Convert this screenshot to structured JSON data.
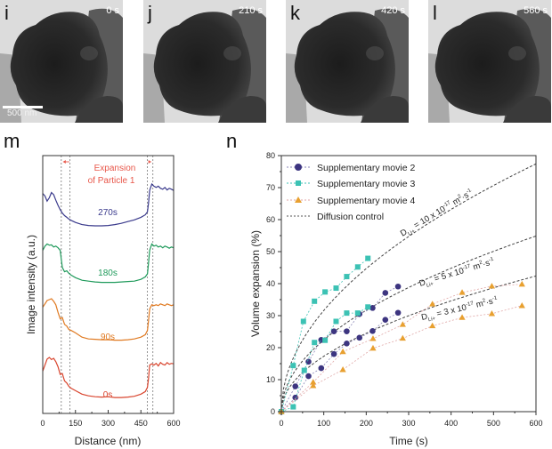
{
  "tem_panels": [
    {
      "letter": "i",
      "time": "0 s",
      "scalebar": "500 nm"
    },
    {
      "letter": "j",
      "time": "210 s"
    },
    {
      "letter": "k",
      "time": "420 s"
    },
    {
      "letter": "l",
      "time": "560 s"
    }
  ],
  "chart_data": [
    {
      "panel": "m",
      "type": "line",
      "xlabel": "Distance (nm)",
      "ylabel": "Image intensity (a.u.)",
      "xlim": [
        0,
        600
      ],
      "xticks": [
        "0",
        "150",
        "300",
        "450",
        "600"
      ],
      "annotation": [
        "Expansion",
        "of Particle 1"
      ],
      "annotation_color": "#e8574a",
      "dashed_lines_x": [
        85,
        125,
        480,
        505
      ],
      "series": [
        {
          "name": "270s",
          "color": "#3a3a8c",
          "offset": 3,
          "x": [
            0,
            10,
            20,
            30,
            40,
            50,
            60,
            70,
            80,
            90,
            100,
            110,
            120,
            130,
            150,
            180,
            210,
            240,
            270,
            300,
            330,
            360,
            390,
            420,
            450,
            470,
            480,
            485,
            490,
            500,
            510,
            520,
            530,
            540,
            550,
            560,
            570,
            580,
            590,
            600
          ],
          "y": [
            0.78,
            0.72,
            0.6,
            0.68,
            0.8,
            0.75,
            0.62,
            0.5,
            0.4,
            0.32,
            0.26,
            0.22,
            0.18,
            0.15,
            0.1,
            0.05,
            0.03,
            0.02,
            0.02,
            0.03,
            0.05,
            0.08,
            0.12,
            0.16,
            0.22,
            0.28,
            0.35,
            0.55,
            0.85,
            1.0,
            0.95,
            0.92,
            0.95,
            0.9,
            0.88,
            0.92,
            0.86,
            0.9,
            0.88,
            0.85
          ]
        },
        {
          "name": "180s",
          "color": "#1f9a5b",
          "offset": 2,
          "x": [
            0,
            10,
            20,
            30,
            40,
            50,
            60,
            70,
            80,
            90,
            100,
            110,
            120,
            130,
            150,
            180,
            210,
            240,
            270,
            300,
            330,
            360,
            390,
            420,
            450,
            470,
            480,
            485,
            490,
            500,
            510,
            520,
            530,
            540,
            550,
            560,
            570,
            580,
            590,
            600
          ],
          "y": [
            0.8,
            0.9,
            0.95,
            0.92,
            0.93,
            0.88,
            0.9,
            0.86,
            0.8,
            0.4,
            0.3,
            0.32,
            0.26,
            0.22,
            0.16,
            0.1,
            0.08,
            0.06,
            0.05,
            0.05,
            0.05,
            0.06,
            0.07,
            0.08,
            0.12,
            0.18,
            0.25,
            0.5,
            0.8,
            0.95,
            0.9,
            0.92,
            0.88,
            0.9,
            0.86,
            0.9,
            0.88,
            0.85,
            0.88,
            0.86
          ]
        },
        {
          "name": "90s",
          "color": "#e07a22",
          "offset": 1,
          "x": [
            0,
            10,
            20,
            30,
            40,
            50,
            60,
            70,
            80,
            90,
            100,
            110,
            120,
            130,
            150,
            180,
            210,
            240,
            270,
            300,
            330,
            360,
            390,
            420,
            450,
            470,
            480,
            485,
            490,
            500,
            510,
            520,
            530,
            540,
            550,
            560,
            570,
            580,
            590,
            600
          ],
          "y": [
            0.82,
            0.9,
            0.98,
            1.0,
            1.02,
            0.96,
            0.88,
            0.7,
            0.55,
            0.58,
            0.42,
            0.38,
            0.3,
            0.28,
            0.22,
            0.12,
            0.08,
            0.07,
            0.06,
            0.06,
            0.05,
            0.05,
            0.06,
            0.08,
            0.12,
            0.18,
            0.28,
            0.5,
            0.78,
            0.88,
            0.86,
            0.88,
            0.86,
            0.9,
            0.88,
            0.86,
            0.9,
            0.88,
            0.86,
            0.88
          ]
        },
        {
          "name": "0s",
          "color": "#d9452e",
          "offset": 0,
          "x": [
            0,
            10,
            20,
            30,
            40,
            50,
            60,
            70,
            80,
            90,
            100,
            110,
            120,
            130,
            150,
            180,
            210,
            240,
            270,
            300,
            330,
            360,
            390,
            420,
            450,
            470,
            480,
            485,
            490,
            500,
            510,
            520,
            530,
            540,
            550,
            560,
            570,
            580,
            590,
            600
          ],
          "y": [
            0.68,
            0.82,
            0.96,
            1.0,
            0.95,
            0.98,
            0.9,
            0.78,
            0.6,
            0.62,
            0.45,
            0.4,
            0.32,
            0.28,
            0.22,
            0.14,
            0.1,
            0.08,
            0.07,
            0.08,
            0.06,
            0.06,
            0.07,
            0.09,
            0.14,
            0.2,
            0.3,
            0.5,
            0.82,
            0.85,
            0.82,
            0.86,
            0.8,
            0.88,
            0.84,
            0.82,
            0.88,
            0.84,
            0.86,
            0.85
          ]
        }
      ]
    },
    {
      "panel": "n",
      "type": "scatter",
      "xlabel": "Time (s)",
      "ylabel": "Volume expansion (%)",
      "xlim": [
        0,
        600
      ],
      "ylim": [
        0,
        80
      ],
      "xticks": [
        0,
        100,
        200,
        300,
        400,
        500,
        600
      ],
      "yticks": [
        0,
        10,
        20,
        30,
        40,
        50,
        60,
        70,
        80
      ],
      "legend_position": "top-left",
      "legend": [
        {
          "label": "Supplementary movie 2",
          "marker": "circle",
          "color": "#3d3580"
        },
        {
          "label": "Supplementary movie 3",
          "marker": "square",
          "color": "#3cc2b4"
        },
        {
          "label": "Supplementary movie 4",
          "marker": "triangle",
          "color": "#e8a030"
        },
        {
          "label": "Diffusion control",
          "marker": "dashed-line",
          "color": "#555555"
        }
      ],
      "series": [
        {
          "name": "Supplementary movie 2",
          "marker": "circle",
          "color": "#3d3580",
          "x": [
            0,
            33,
            64,
            94,
            124,
            154,
            184,
            215,
            245,
            275
          ],
          "y": [
            0,
            7.9,
            15.6,
            22.4,
            25.1,
            25.1,
            30.5,
            32.4,
            37.1,
            39.1
          ]
        },
        {
          "name": "Supplementary movie 2 (b)",
          "marker": "circle",
          "color": "#3d3580",
          "x": [
            0,
            33,
            64,
            94,
            124,
            154,
            184,
            215,
            245,
            275
          ],
          "y": [
            0,
            4.4,
            11.1,
            13.6,
            18.0,
            21.3,
            23.1,
            25.2,
            28.7,
            30.9
          ]
        },
        {
          "name": "Supplementary movie 3",
          "marker": "square",
          "color": "#3cc2b4",
          "x": [
            0,
            28,
            52,
            78,
            103,
            129,
            154,
            180,
            204
          ],
          "y": [
            0,
            14.4,
            28.2,
            34.5,
            37.4,
            38.6,
            42.2,
            45.2,
            47.9
          ]
        },
        {
          "name": "Supplementary movie 3 (b)",
          "marker": "square",
          "color": "#3cc2b4",
          "x": [
            0,
            28,
            54,
            78,
            103,
            129,
            154,
            180,
            204
          ],
          "y": [
            0,
            1.5,
            12.9,
            21.6,
            22.3,
            28.2,
            30.8,
            30.8,
            32.7
          ]
        },
        {
          "name": "Supplementary movie 4",
          "marker": "triangle",
          "color": "#e8a030",
          "x": [
            0,
            75,
            145,
            216,
            286,
            356,
            426,
            496,
            567
          ],
          "y": [
            0,
            9.2,
            18.7,
            22.8,
            27.2,
            33.6,
            37.2,
            39.2,
            39.8
          ]
        },
        {
          "name": "Supplementary movie 4 (b)",
          "marker": "triangle",
          "color": "#e8a030",
          "x": [
            0,
            75,
            145,
            216,
            286,
            356,
            426,
            496,
            567
          ],
          "y": [
            0,
            8.1,
            13.1,
            19.8,
            22.9,
            26.8,
            29.4,
            30.6,
            33.1
          ]
        }
      ],
      "diffusion_curves": [
        {
          "label_main": "D",
          "label_sub": "Li+",
          "label_rest": " = 10 x 10",
          "label_exp": "-17",
          "label_unit": " m",
          "label_unit_exp": "2",
          "label_tail": "·s",
          "label_tail_exp": "-1",
          "k": 3.16
        },
        {
          "label_main": "D",
          "label_sub": "Li+",
          "label_rest": " = 5 x 10",
          "label_exp": "-17",
          "label_unit": " m",
          "label_unit_exp": "2",
          "label_tail": "·s",
          "label_tail_exp": "-1",
          "k": 2.24
        },
        {
          "label_main": "D",
          "label_sub": "Li+",
          "label_rest": " = 3 x 10",
          "label_exp": "-17",
          "label_unit": " m",
          "label_unit_exp": "2",
          "label_tail": "·s",
          "label_tail_exp": "-1",
          "k": 1.73
        }
      ]
    }
  ]
}
